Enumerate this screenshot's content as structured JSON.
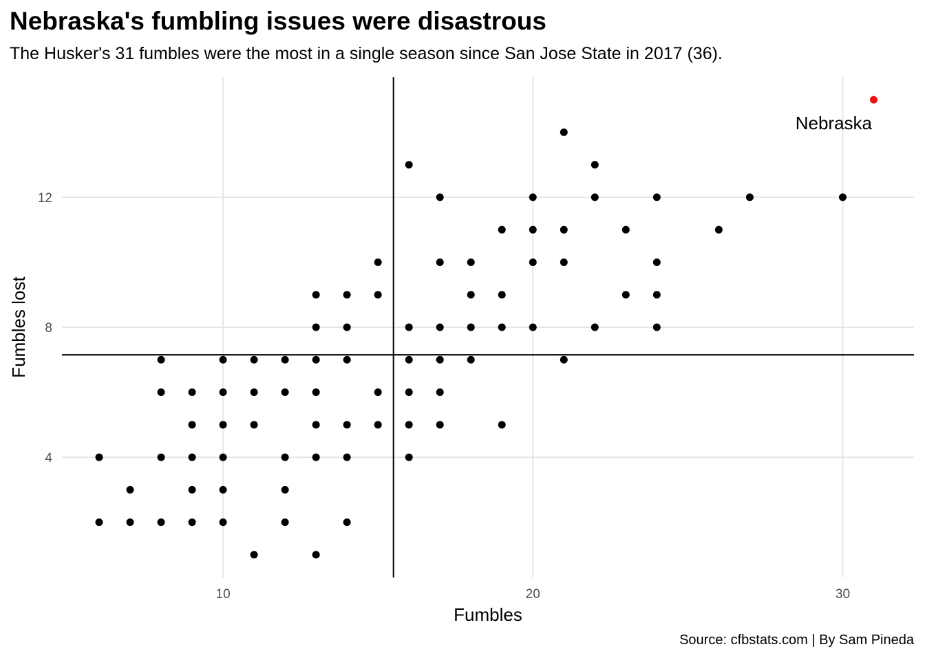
{
  "chart_data": {
    "type": "scatter",
    "title": "Nebraska's fumbling issues were disastrous",
    "subtitle": "The Husker's 31 fumbles were the most in a single season since San Jose State in 2017 (36).",
    "caption": "Source: cfbstats.com | By Sam Pineda",
    "xlabel": "Fumbles",
    "ylabel": "Fumbles lost",
    "xlim": [
      4.8,
      32.3
    ],
    "ylim": [
      0.3,
      15.7
    ],
    "x_ticks": [
      10,
      20,
      30
    ],
    "y_ticks": [
      4,
      8,
      12
    ],
    "grid": true,
    "reference_lines": {
      "x": 15.5,
      "y": 7.15
    },
    "point_color": "#000000",
    "highlight_color": "#ee1111",
    "points": [
      [
        6,
        4
      ],
      [
        6,
        2
      ],
      [
        7,
        3
      ],
      [
        7,
        2
      ],
      [
        8,
        7
      ],
      [
        8,
        6
      ],
      [
        8,
        4
      ],
      [
        8,
        2
      ],
      [
        9,
        6
      ],
      [
        9,
        5
      ],
      [
        9,
        4
      ],
      [
        9,
        3
      ],
      [
        9,
        2
      ],
      [
        10,
        7
      ],
      [
        10,
        6
      ],
      [
        10,
        5
      ],
      [
        10,
        4
      ],
      [
        10,
        3
      ],
      [
        10,
        2
      ],
      [
        11,
        7
      ],
      [
        11,
        6
      ],
      [
        11,
        5
      ],
      [
        11,
        1
      ],
      [
        12,
        7
      ],
      [
        12,
        6
      ],
      [
        12,
        4
      ],
      [
        12,
        3
      ],
      [
        12,
        2
      ],
      [
        13,
        9
      ],
      [
        13,
        8
      ],
      [
        13,
        7
      ],
      [
        13,
        6
      ],
      [
        13,
        5
      ],
      [
        13,
        4
      ],
      [
        13,
        1
      ],
      [
        14,
        9
      ],
      [
        14,
        8
      ],
      [
        14,
        7
      ],
      [
        14,
        5
      ],
      [
        14,
        4
      ],
      [
        14,
        2
      ],
      [
        15,
        10
      ],
      [
        15,
        9
      ],
      [
        15,
        6
      ],
      [
        15,
        5
      ],
      [
        16,
        13
      ],
      [
        16,
        8
      ],
      [
        16,
        7
      ],
      [
        16,
        6
      ],
      [
        16,
        5
      ],
      [
        16,
        4
      ],
      [
        17,
        12
      ],
      [
        17,
        10
      ],
      [
        17,
        8
      ],
      [
        17,
        7
      ],
      [
        17,
        6
      ],
      [
        17,
        5
      ],
      [
        18,
        10
      ],
      [
        18,
        9
      ],
      [
        18,
        8
      ],
      [
        18,
        7
      ],
      [
        19,
        11
      ],
      [
        19,
        9
      ],
      [
        19,
        8
      ],
      [
        19,
        5
      ],
      [
        20,
        12
      ],
      [
        20,
        11
      ],
      [
        20,
        10
      ],
      [
        20,
        8
      ],
      [
        21,
        14
      ],
      [
        21,
        11
      ],
      [
        21,
        10
      ],
      [
        21,
        7
      ],
      [
        22,
        13
      ],
      [
        22,
        12
      ],
      [
        22,
        8
      ],
      [
        23,
        11
      ],
      [
        23,
        9
      ],
      [
        24,
        12
      ],
      [
        24,
        10
      ],
      [
        24,
        9
      ],
      [
        24,
        8
      ],
      [
        26,
        11
      ],
      [
        27,
        12
      ],
      [
        30,
        12
      ]
    ],
    "highlight": {
      "label": "Nebraska",
      "x": 31,
      "y": 15
    }
  }
}
